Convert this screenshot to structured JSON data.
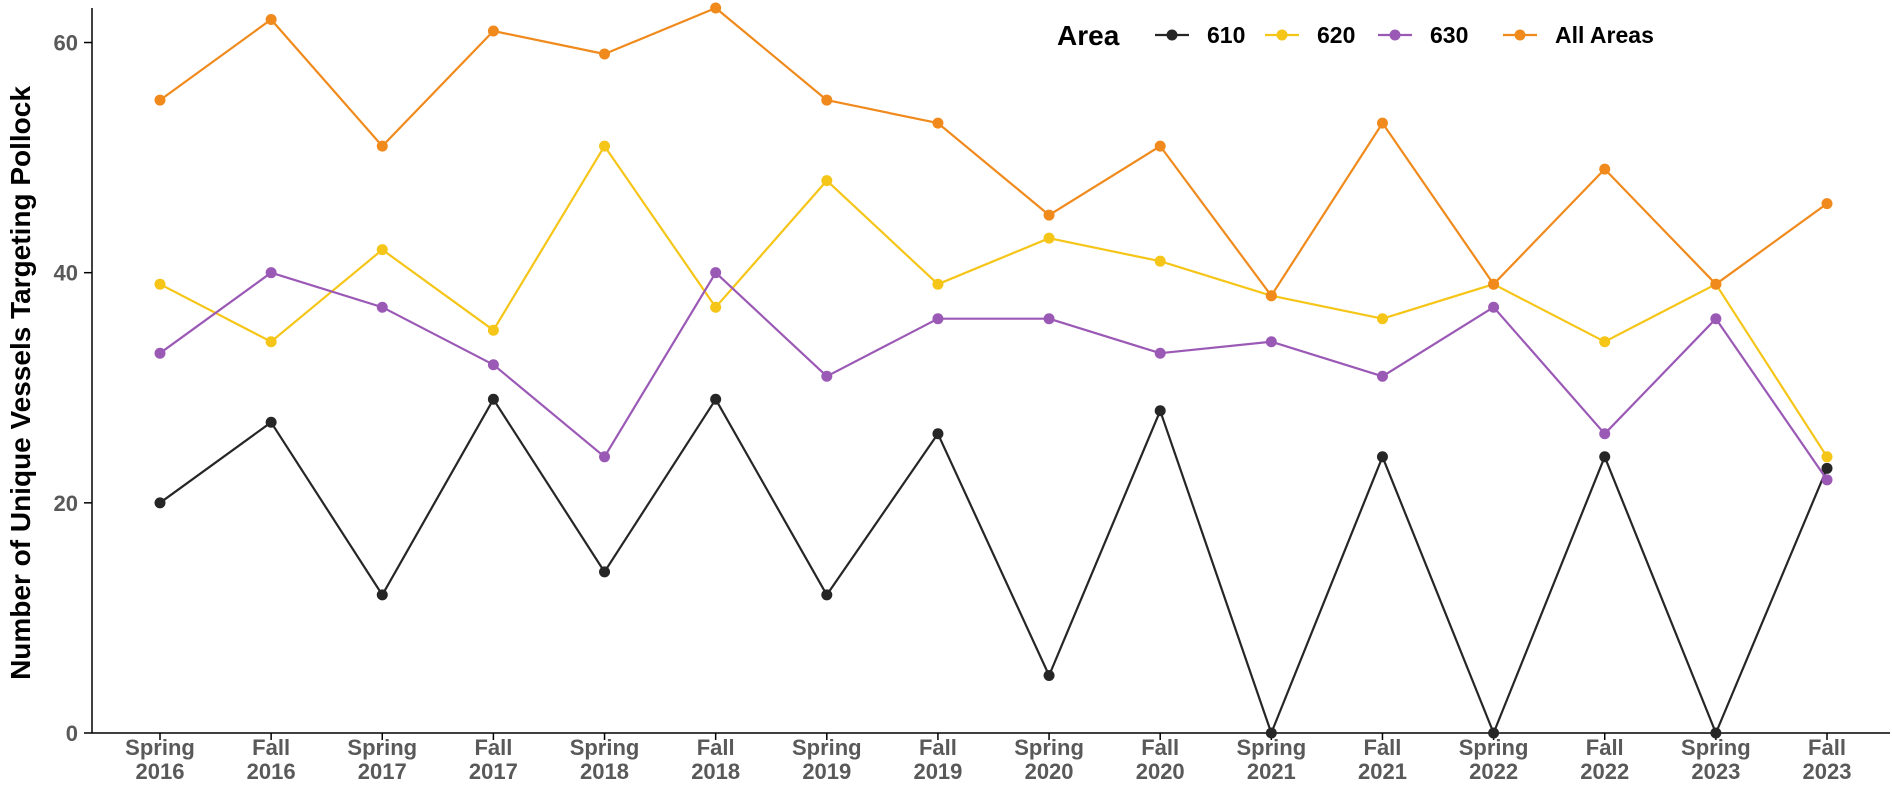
{
  "chart_data": {
    "type": "line",
    "title": "",
    "xlabel": "",
    "ylabel": "Number of Unique Vessels Targeting Pollock",
    "ylim": [
      0,
      63
    ],
    "yticks": [
      0,
      20,
      40,
      60
    ],
    "grid": false,
    "legend_position": "top-right",
    "legend_title": "Area",
    "categories": [
      [
        "Spring",
        "2016"
      ],
      [
        "Fall",
        "2016"
      ],
      [
        "Spring",
        "2017"
      ],
      [
        "Fall",
        "2017"
      ],
      [
        "Spring",
        "2018"
      ],
      [
        "Fall",
        "2018"
      ],
      [
        "Spring",
        "2019"
      ],
      [
        "Fall",
        "2019"
      ],
      [
        "Spring",
        "2020"
      ],
      [
        "Fall",
        "2020"
      ],
      [
        "Spring",
        "2021"
      ],
      [
        "Fall",
        "2021"
      ],
      [
        "Spring",
        "2022"
      ],
      [
        "Fall",
        "2022"
      ],
      [
        "Spring",
        "2023"
      ],
      [
        "Fall",
        "2023"
      ]
    ],
    "series": [
      {
        "name": "610",
        "color": "#262626",
        "values": [
          20,
          27,
          12,
          29,
          14,
          29,
          12,
          26,
          5,
          28,
          0,
          24,
          0,
          24,
          0,
          23
        ]
      },
      {
        "name": "620",
        "color": "#f5c518",
        "values": [
          39,
          34,
          42,
          35,
          51,
          37,
          48,
          39,
          43,
          41,
          38,
          36,
          39,
          34,
          39,
          24
        ]
      },
      {
        "name": "630",
        "color": "#9b59b6",
        "values": [
          33,
          40,
          37,
          32,
          24,
          40,
          31,
          36,
          36,
          33,
          34,
          31,
          37,
          26,
          36,
          22
        ]
      },
      {
        "name": "All Areas",
        "color": "#f08a1c",
        "values": [
          55,
          62,
          51,
          61,
          59,
          63,
          55,
          53,
          45,
          51,
          38,
          53,
          39,
          49,
          39,
          46
        ]
      }
    ]
  }
}
